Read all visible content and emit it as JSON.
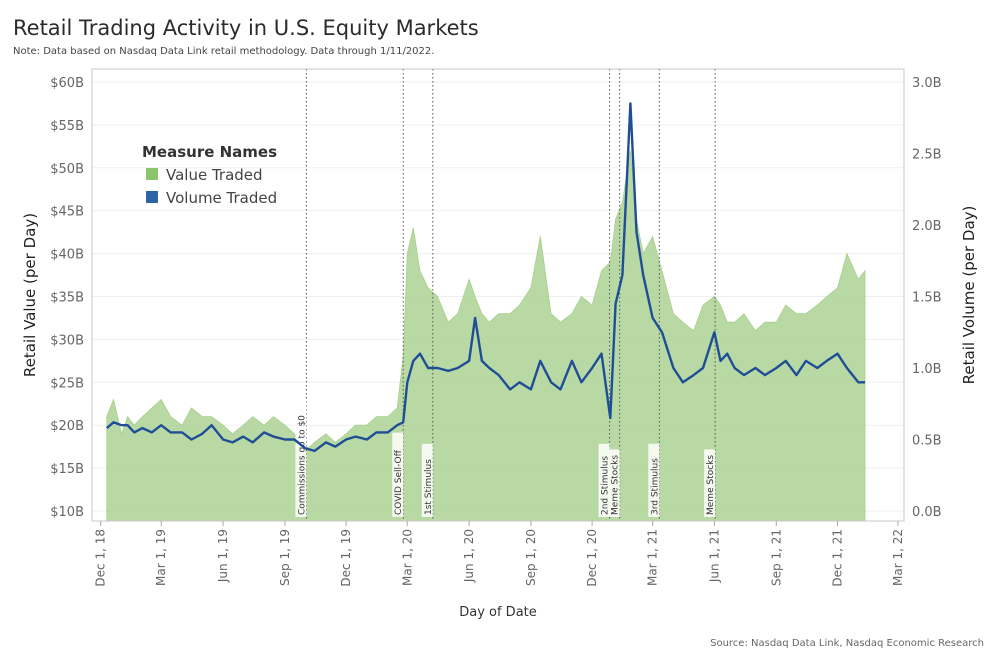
{
  "title": "Retail Trading Activity in U.S. Equity Markets",
  "subtitle": "Note: Data based on Nasdaq Data Link retail methodology. Data through 1/11/2022.",
  "source": "Source: Nasdaq Data Link, Nasdaq Economic Research",
  "colors": {
    "value": "#a8d08d",
    "volume": "#1f4e96",
    "legend_value": "#8cc56d",
    "legend_volume": "#2e63a8"
  },
  "chart_data": {
    "type": "area",
    "xlabel": "Day of Date",
    "ylabel": "Retail Value (per Day)",
    "y2label": "Retail Volume (per Day)",
    "x_range": [
      "2018-11-18",
      "2022-03-10"
    ],
    "ylim": [
      10,
      60
    ],
    "y2lim": [
      0,
      3.0
    ],
    "x_ticks": [
      {
        "date": "2018-12-01",
        "label": "Dec 1, 18"
      },
      {
        "date": "2019-03-01",
        "label": "Mar 1, 19"
      },
      {
        "date": "2019-06-01",
        "label": "Jun 1, 19"
      },
      {
        "date": "2019-09-01",
        "label": "Sep 1, 19"
      },
      {
        "date": "2019-12-01",
        "label": "Dec 1, 19"
      },
      {
        "date": "2020-03-01",
        "label": "Mar 1, 20"
      },
      {
        "date": "2020-06-01",
        "label": "Jun 1, 20"
      },
      {
        "date": "2020-09-01",
        "label": "Sep 1, 20"
      },
      {
        "date": "2020-12-01",
        "label": "Dec 1, 20"
      },
      {
        "date": "2021-03-01",
        "label": "Mar 1, 21"
      },
      {
        "date": "2021-06-01",
        "label": "Jun 1, 21"
      },
      {
        "date": "2021-09-01",
        "label": "Sep 1, 21"
      },
      {
        "date": "2021-12-01",
        "label": "Dec 1, 21"
      },
      {
        "date": "2022-03-01",
        "label": "Mar 1, 22"
      }
    ],
    "y_ticks": [
      {
        "value": 10,
        "label": "$10B"
      },
      {
        "value": 15,
        "label": "$15B"
      },
      {
        "value": 20,
        "label": "$20B"
      },
      {
        "value": 25,
        "label": "$25B"
      },
      {
        "value": 30,
        "label": "$30B"
      },
      {
        "value": 35,
        "label": "$35B"
      },
      {
        "value": 40,
        "label": "$40B"
      },
      {
        "value": 45,
        "label": "$45B"
      },
      {
        "value": 50,
        "label": "$50B"
      },
      {
        "value": 55,
        "label": "$55B"
      },
      {
        "value": 60,
        "label": "$60B"
      }
    ],
    "y2_ticks": [
      {
        "value": 0.0,
        "label": "0.0B"
      },
      {
        "value": 0.5,
        "label": "0.5B"
      },
      {
        "value": 1.0,
        "label": "1.0B"
      },
      {
        "value": 1.5,
        "label": "1.5B"
      },
      {
        "value": 2.0,
        "label": "2.0B"
      },
      {
        "value": 2.5,
        "label": "2.5B"
      },
      {
        "value": 3.0,
        "label": "3.0B"
      }
    ],
    "legend": {
      "title": "Measure Names",
      "placement": "top-left",
      "items": [
        "Value Traded",
        "Volume Traded"
      ]
    },
    "annotations": [
      {
        "date": "2019-10-03",
        "label": "Commissions go to $0"
      },
      {
        "date": "2020-02-24",
        "label": "COVID Sell-Off"
      },
      {
        "date": "2020-04-08",
        "label": "1st Stimulus"
      },
      {
        "date": "2020-12-27",
        "label": "2nd Stimulus"
      },
      {
        "date": "2021-01-11",
        "label": "Meme Stocks"
      },
      {
        "date": "2021-03-11",
        "label": "3rd Stimulus"
      },
      {
        "date": "2021-06-02",
        "label": "Meme Stocks"
      }
    ],
    "series": [
      {
        "name": "Value Traded",
        "x": [
          "2018-12-10",
          "2018-12-20",
          "2019-01-01",
          "2019-01-10",
          "2019-01-20",
          "2019-02-01",
          "2019-02-15",
          "2019-03-01",
          "2019-03-15",
          "2019-04-01",
          "2019-04-15",
          "2019-05-01",
          "2019-05-15",
          "2019-06-01",
          "2019-06-15",
          "2019-07-01",
          "2019-07-15",
          "2019-08-01",
          "2019-08-15",
          "2019-09-01",
          "2019-09-15",
          "2019-10-01",
          "2019-10-15",
          "2019-11-01",
          "2019-11-15",
          "2019-12-01",
          "2019-12-15",
          "2020-01-01",
          "2020-01-15",
          "2020-02-01",
          "2020-02-15",
          "2020-02-24",
          "2020-03-01",
          "2020-03-10",
          "2020-03-20",
          "2020-04-01",
          "2020-04-15",
          "2020-05-01",
          "2020-05-15",
          "2020-06-01",
          "2020-06-10",
          "2020-06-20",
          "2020-07-01",
          "2020-07-15",
          "2020-08-01",
          "2020-08-15",
          "2020-09-01",
          "2020-09-15",
          "2020-10-01",
          "2020-10-15",
          "2020-11-01",
          "2020-11-15",
          "2020-12-01",
          "2020-12-15",
          "2020-12-28",
          "2021-01-05",
          "2021-01-15",
          "2021-01-27",
          "2021-02-05",
          "2021-02-15",
          "2021-03-01",
          "2021-03-15",
          "2021-04-01",
          "2021-04-15",
          "2021-05-01",
          "2021-05-15",
          "2021-06-01",
          "2021-06-10",
          "2021-06-20",
          "2021-07-01",
          "2021-07-15",
          "2021-08-01",
          "2021-08-15",
          "2021-09-01",
          "2021-09-15",
          "2021-10-01",
          "2021-10-15",
          "2021-11-01",
          "2021-11-15",
          "2021-12-01",
          "2021-12-15",
          "2022-01-01",
          "2022-01-11"
        ],
        "values": [
          21,
          23,
          19,
          21,
          20,
          21,
          22,
          23,
          21,
          20,
          22,
          21,
          21,
          20,
          19,
          20,
          21,
          20,
          21,
          20,
          19,
          17,
          18,
          19,
          18,
          19,
          20,
          20,
          21,
          21,
          22,
          28,
          40,
          43,
          38,
          36,
          35,
          32,
          33,
          37,
          35,
          33,
          32,
          33,
          33,
          34,
          36,
          42,
          33,
          32,
          33,
          35,
          34,
          38,
          39,
          44,
          46,
          52,
          44,
          40,
          42,
          38,
          33,
          32,
          31,
          34,
          35,
          34,
          32,
          32,
          33,
          31,
          32,
          32,
          34,
          33,
          33,
          34,
          35,
          36,
          40,
          37,
          38
        ]
      },
      {
        "name": "Volume Traded",
        "x": [
          "2018-12-10",
          "2018-12-20",
          "2019-01-01",
          "2019-01-10",
          "2019-01-20",
          "2019-02-01",
          "2019-02-15",
          "2019-03-01",
          "2019-03-15",
          "2019-04-01",
          "2019-04-15",
          "2019-05-01",
          "2019-05-15",
          "2019-06-01",
          "2019-06-15",
          "2019-07-01",
          "2019-07-15",
          "2019-08-01",
          "2019-08-15",
          "2019-09-01",
          "2019-09-15",
          "2019-10-01",
          "2019-10-15",
          "2019-11-01",
          "2019-11-15",
          "2019-12-01",
          "2019-12-15",
          "2020-01-01",
          "2020-01-15",
          "2020-02-01",
          "2020-02-15",
          "2020-02-24",
          "2020-03-01",
          "2020-03-10",
          "2020-03-20",
          "2020-04-01",
          "2020-04-15",
          "2020-05-01",
          "2020-05-15",
          "2020-06-01",
          "2020-06-10",
          "2020-06-20",
          "2020-07-01",
          "2020-07-15",
          "2020-08-01",
          "2020-08-15",
          "2020-09-01",
          "2020-09-15",
          "2020-10-01",
          "2020-10-15",
          "2020-11-01",
          "2020-11-15",
          "2020-12-01",
          "2020-12-15",
          "2020-12-28",
          "2021-01-05",
          "2021-01-15",
          "2021-01-27",
          "2021-02-05",
          "2021-02-15",
          "2021-03-01",
          "2021-03-15",
          "2021-04-01",
          "2021-04-15",
          "2021-05-01",
          "2021-05-15",
          "2021-06-01",
          "2021-06-10",
          "2021-06-20",
          "2021-07-01",
          "2021-07-15",
          "2021-08-01",
          "2021-08-15",
          "2021-09-01",
          "2021-09-15",
          "2021-10-01",
          "2021-10-15",
          "2021-11-01",
          "2021-11-15",
          "2021-12-01",
          "2021-12-15",
          "2022-01-01",
          "2022-01-11"
        ],
        "values": [
          0.58,
          0.62,
          0.6,
          0.6,
          0.55,
          0.58,
          0.55,
          0.6,
          0.55,
          0.55,
          0.5,
          0.54,
          0.6,
          0.5,
          0.48,
          0.52,
          0.48,
          0.55,
          0.52,
          0.5,
          0.5,
          0.44,
          0.42,
          0.48,
          0.45,
          0.5,
          0.52,
          0.5,
          0.55,
          0.55,
          0.6,
          0.62,
          0.9,
          1.05,
          1.1,
          1.0,
          1.0,
          0.98,
          1.0,
          1.05,
          1.35,
          1.05,
          1.0,
          0.95,
          0.85,
          0.9,
          0.85,
          1.05,
          0.9,
          0.85,
          1.05,
          0.9,
          1.0,
          1.1,
          0.65,
          1.45,
          1.65,
          2.85,
          1.95,
          1.65,
          1.35,
          1.25,
          1.0,
          0.9,
          0.95,
          1.0,
          1.25,
          1.05,
          1.1,
          1.0,
          0.95,
          1.0,
          0.95,
          1.0,
          1.05,
          0.95,
          1.05,
          1.0,
          1.05,
          1.1,
          1.0,
          0.9,
          0.9
        ]
      }
    ]
  }
}
